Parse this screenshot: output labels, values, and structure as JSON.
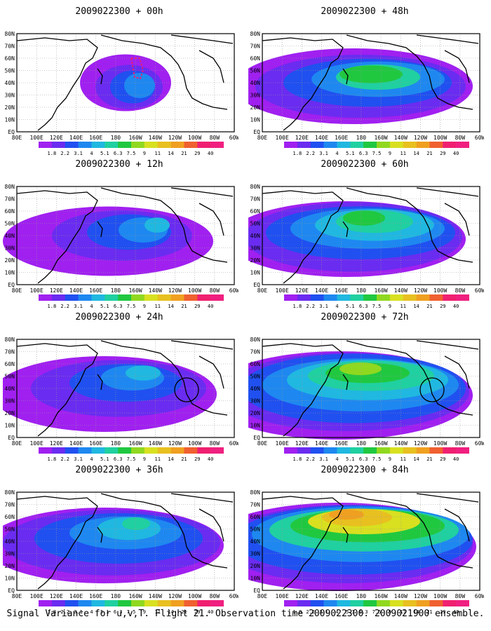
{
  "panels": [
    {
      "title": "2009022300 + 00h",
      "blobs": [
        [
          175,
          84,
          22,
          20,
          3
        ],
        [
          165,
          86,
          32,
          26,
          2
        ],
        [
          160,
          86,
          48,
          35,
          1
        ],
        [
          155,
          80,
          65,
          45,
          0
        ]
      ],
      "circle": false,
      "box": true
    },
    {
      "title": "2009022300 + 48h",
      "blobs": [
        [
          155,
          68,
          45,
          14,
          6
        ],
        [
          165,
          72,
          60,
          20,
          5
        ],
        [
          165,
          75,
          95,
          28,
          3
        ],
        [
          150,
          80,
          120,
          38,
          2
        ],
        [
          140,
          85,
          150,
          50,
          1
        ],
        [
          130,
          85,
          170,
          60,
          0
        ]
      ],
      "circle": false,
      "box": false
    },
    {
      "title": "2009022300 + 12h",
      "blobs": [
        [
          200,
          65,
          18,
          12,
          4
        ],
        [
          180,
          72,
          35,
          20,
          3
        ],
        [
          160,
          75,
          60,
          28,
          2
        ],
        [
          150,
          80,
          100,
          40,
          1
        ],
        [
          130,
          88,
          150,
          55,
          0
        ]
      ],
      "circle": false,
      "box": false
    },
    {
      "title": "2009022300 + 60h",
      "blobs": [
        [
          145,
          55,
          30,
          12,
          6
        ],
        [
          160,
          60,
          55,
          18,
          5
        ],
        [
          160,
          65,
          85,
          25,
          4
        ],
        [
          150,
          70,
          110,
          32,
          3
        ],
        [
          140,
          76,
          135,
          42,
          2
        ],
        [
          130,
          82,
          155,
          55,
          1
        ],
        [
          120,
          85,
          170,
          60,
          0
        ]
      ],
      "circle": false,
      "box": false
    },
    {
      "title": "2009022300 + 24h",
      "blobs": [
        [
          180,
          58,
          25,
          12,
          4
        ],
        [
          165,
          65,
          45,
          20,
          3
        ],
        [
          155,
          72,
          80,
          30,
          2
        ],
        [
          145,
          80,
          125,
          45,
          1
        ],
        [
          125,
          88,
          160,
          60,
          0
        ]
      ],
      "circle": true,
      "box": false
    },
    {
      "title": "2009022300 + 72h",
      "blobs": [
        [
          140,
          52,
          30,
          10,
          7
        ],
        [
          150,
          58,
          60,
          16,
          6
        ],
        [
          155,
          62,
          90,
          24,
          5
        ],
        [
          150,
          68,
          115,
          32,
          4
        ],
        [
          140,
          75,
          140,
          42,
          3
        ],
        [
          130,
          80,
          160,
          55,
          2
        ],
        [
          120,
          85,
          175,
          62,
          1
        ],
        [
          110,
          90,
          190,
          70,
          0
        ]
      ],
      "circle": true,
      "box": false
    },
    {
      "title": "2009022300 + 36h",
      "blobs": [
        [
          170,
          55,
          20,
          10,
          5
        ],
        [
          160,
          62,
          45,
          18,
          4
        ],
        [
          155,
          68,
          80,
          26,
          3
        ],
        [
          145,
          76,
          120,
          40,
          2
        ],
        [
          135,
          82,
          155,
          52,
          1
        ],
        [
          125,
          86,
          170,
          60,
          0
        ]
      ],
      "circle": false,
      "box": false
    },
    {
      "title": "2009022300 + 84h",
      "blobs": [
        [
          120,
          42,
          25,
          8,
          10
        ],
        [
          135,
          46,
          50,
          14,
          9
        ],
        [
          145,
          52,
          80,
          20,
          8
        ],
        [
          150,
          58,
          110,
          26,
          6
        ],
        [
          145,
          64,
          135,
          34,
          5
        ],
        [
          140,
          70,
          155,
          44,
          3
        ],
        [
          130,
          78,
          170,
          55,
          2
        ],
        [
          120,
          84,
          180,
          62,
          1
        ],
        [
          110,
          88,
          195,
          70,
          0
        ]
      ],
      "circle": false,
      "box": false
    }
  ],
  "lon_labels": [
    "80E",
    "100E",
    "120E",
    "140E",
    "160E",
    "180",
    "160W",
    "140W",
    "120W",
    "100W",
    "80W",
    "60W"
  ],
  "lat_labels": [
    "80N",
    "70N",
    "60N",
    "50N",
    "40N",
    "30N",
    "20N",
    "10N",
    "EQ"
  ],
  "colorbar": {
    "labels": [
      "1.8",
      "2.2",
      "3.1",
      "4",
      "5.1",
      "6.3",
      "7.5",
      "9",
      "11",
      "14",
      "21",
      "29",
      "40"
    ],
    "colors": [
      "#a020f0",
      "#6a2cf0",
      "#2050f0",
      "#1e88f0",
      "#20b8e0",
      "#20d0a0",
      "#20c840",
      "#90d820",
      "#d8e020",
      "#e8c020",
      "#f0a020",
      "#f06030",
      "#f02070",
      "#f02080"
    ]
  },
  "caption": "Signal Variance for u,v,T. Flight 21. Observation time 2009022300. 2009021900 ensemble."
}
